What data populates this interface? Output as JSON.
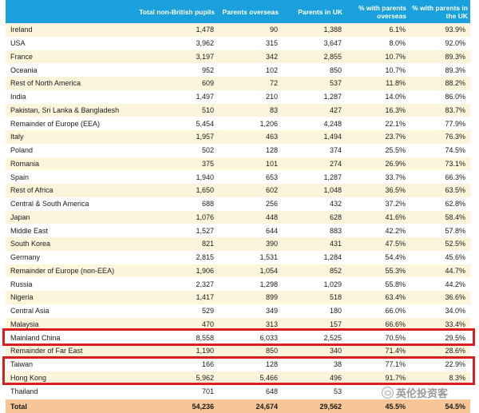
{
  "columns": [
    "",
    "Total non-British pupils",
    "Parents overseas",
    "Parents in UK",
    "% with parents overseas",
    "% with parents in the UK"
  ],
  "rows": [
    [
      "Ireland",
      "1,478",
      "90",
      "1,388",
      "6.1%",
      "93.9%"
    ],
    [
      "USA",
      "3,962",
      "315",
      "3,647",
      "8.0%",
      "92.0%"
    ],
    [
      "France",
      "3,197",
      "342",
      "2,855",
      "10.7%",
      "89.3%"
    ],
    [
      "Oceania",
      "952",
      "102",
      "850",
      "10.7%",
      "89.3%"
    ],
    [
      "Rest of North America",
      "609",
      "72",
      "537",
      "11.8%",
      "88.2%"
    ],
    [
      "India",
      "1,497",
      "210",
      "1,287",
      "14.0%",
      "86.0%"
    ],
    [
      "Pakistan, Sri Lanka & Bangladesh",
      "510",
      "83",
      "427",
      "16.3%",
      "83.7%"
    ],
    [
      "Remainder of Europe (EEA)",
      "5,454",
      "1,206",
      "4,248",
      "22.1%",
      "77.9%"
    ],
    [
      "Italy",
      "1,957",
      "463",
      "1,494",
      "23.7%",
      "76.3%"
    ],
    [
      "Poland",
      "502",
      "128",
      "374",
      "25.5%",
      "74.5%"
    ],
    [
      "Romania",
      "375",
      "101",
      "274",
      "26.9%",
      "73.1%"
    ],
    [
      "Spain",
      "1,940",
      "653",
      "1,287",
      "33.7%",
      "66.3%"
    ],
    [
      "Rest of Africa",
      "1,650",
      "602",
      "1,048",
      "36.5%",
      "63.5%"
    ],
    [
      "Central & South America",
      "688",
      "256",
      "432",
      "37.2%",
      "62.8%"
    ],
    [
      "Japan",
      "1,076",
      "448",
      "628",
      "41.6%",
      "58.4%"
    ],
    [
      "Middle East",
      "1,527",
      "644",
      "883",
      "42.2%",
      "57.8%"
    ],
    [
      "South Korea",
      "821",
      "390",
      "431",
      "47.5%",
      "52.5%"
    ],
    [
      "Germany",
      "2,815",
      "1,531",
      "1,284",
      "54.4%",
      "45.6%"
    ],
    [
      "Remainder of Europe (non-EEA)",
      "1,906",
      "1,054",
      "852",
      "55.3%",
      "44.7%"
    ],
    [
      "Russia",
      "2,327",
      "1,298",
      "1,029",
      "55.8%",
      "44.2%"
    ],
    [
      "Nigeria",
      "1,417",
      "899",
      "518",
      "63.4%",
      "36.6%"
    ],
    [
      "Central Asia",
      "529",
      "349",
      "180",
      "66.0%",
      "34.0%"
    ],
    [
      "Malaysia",
      "470",
      "313",
      "157",
      "66.6%",
      "33.4%"
    ],
    [
      "Mainland China",
      "8,558",
      "6,033",
      "2,525",
      "70.5%",
      "29.5%"
    ],
    [
      "Remainder of Far East",
      "1,190",
      "850",
      "340",
      "71.4%",
      "28.6%"
    ],
    [
      "Taiwan",
      "166",
      "128",
      "38",
      "77.1%",
      "22.9%"
    ],
    [
      "Hong Kong",
      "5,962",
      "5,466",
      "496",
      "91.7%",
      "8.3%"
    ],
    [
      "Thailand",
      "701",
      "648",
      "53",
      "",
      ""
    ]
  ],
  "total": [
    "Total",
    "54,236",
    "24,674",
    "29,562",
    "45.5%",
    "54.5%"
  ],
  "highlight_color": "#d81e1e",
  "header_color": "#1aa0dc",
  "watermark": {
    "icon": "wechat-icon",
    "text": "英伦投资客"
  }
}
